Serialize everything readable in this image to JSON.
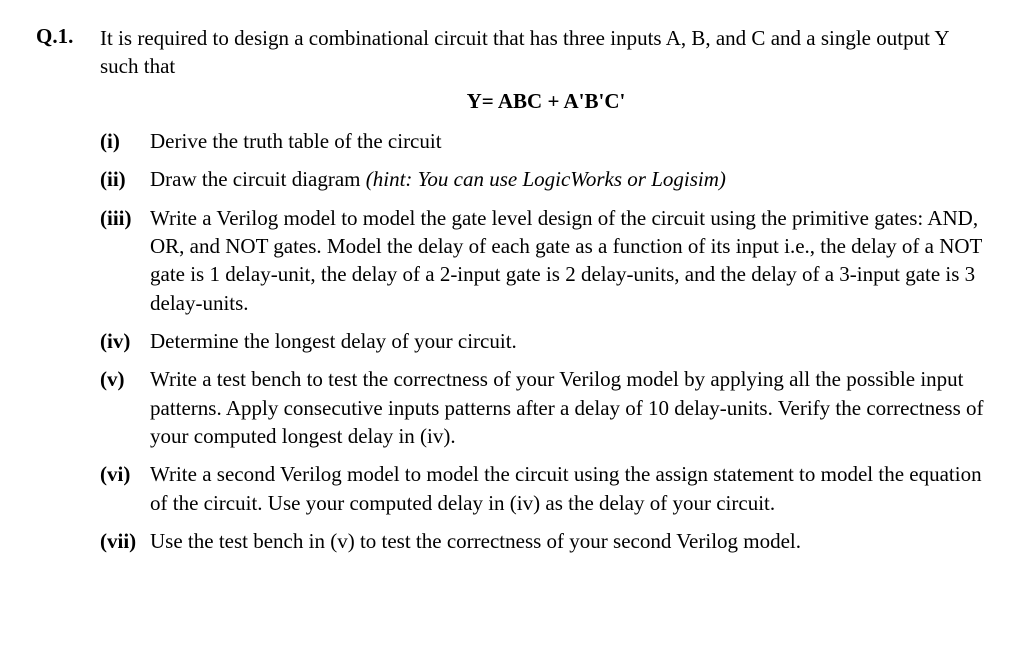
{
  "question_number": "Q.1.",
  "intro": "It is required to design a combinational circuit that has three inputs A, B, and C and a single output Y such that",
  "equation": "Y= ABC + A'B'C'",
  "parts": [
    {
      "label": "(i)",
      "text": "Derive the truth table of the circuit",
      "hint": ""
    },
    {
      "label": "(ii)",
      "text": "Draw the circuit diagram ",
      "hint": "(hint: You can use LogicWorks or Logisim)"
    },
    {
      "label": "(iii)",
      "text": "Write a Verilog model to model the gate level design of the circuit using the primitive gates: AND, OR, and NOT gates. Model the delay of each gate as a function of its input i.e., the delay of a NOT gate is 1 delay-unit, the delay of a 2-input gate is 2 delay-units, and the delay of a 3-input gate is 3 delay-units.",
      "hint": ""
    },
    {
      "label": "(iv)",
      "text": "Determine the longest delay of your circuit.",
      "hint": ""
    },
    {
      "label": "(v)",
      "text": "Write a test bench to test the correctness of your Verilog model by applying all the possible input patterns. Apply consecutive inputs patterns after a delay of 10 delay-units. Verify the correctness of your computed longest delay in (iv).",
      "hint": ""
    },
    {
      "label": "(vi)",
      "text": "Write a second Verilog model to model the circuit using the assign statement to model the equation of the circuit. Use your computed delay in (iv) as the delay of your circuit.",
      "hint": ""
    },
    {
      "label": "(vii)",
      "text": "Use the test bench in (v) to test the correctness of your second Verilog model.",
      "hint": ""
    }
  ],
  "styling": {
    "background_color": "#ffffff",
    "text_color": "#000000",
    "font_family": "Times New Roman",
    "base_font_size": 21,
    "line_height": 1.35,
    "question_number_weight": "bold",
    "part_label_weight": "bold",
    "equation_weight": "bold",
    "hint_style": "italic"
  }
}
